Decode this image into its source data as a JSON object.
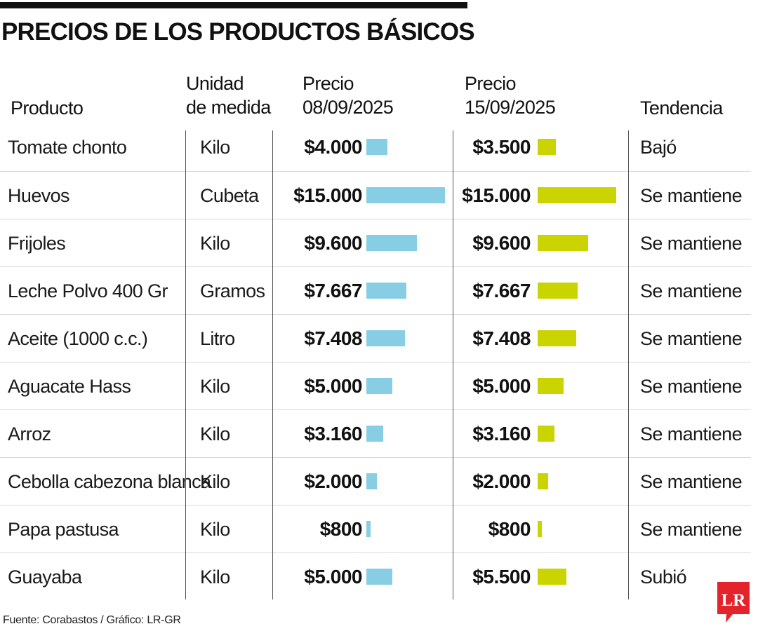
{
  "title": "PRECIOS DE LOS PRODUCTOS BÁSICOS",
  "columns": {
    "product": "Producto",
    "unit_line1": "Unidad",
    "unit_line2": "de medida",
    "price1_line1": "Precio",
    "price1_line2": "08/09/2025",
    "price2_line1": "Precio",
    "price2_line2": "15/09/2025",
    "trend": "Tendencia"
  },
  "colors": {
    "bar_week1": "#87cee5",
    "bar_week2": "#c9d400",
    "logo": "#e3242b"
  },
  "chart_data": {
    "type": "bar",
    "series": [
      {
        "name": "08/09/2025",
        "values": [
          4000,
          15000,
          9600,
          7667,
          7408,
          5000,
          3160,
          2000,
          800,
          5000
        ]
      },
      {
        "name": "15/09/2025",
        "values": [
          3500,
          15000,
          9600,
          7667,
          7408,
          5000,
          3160,
          2000,
          800,
          5500
        ]
      }
    ],
    "rows": [
      {
        "product": "Tomate chonto",
        "unit": "Kilo",
        "price1": 4000,
        "price1_label": "$4.000",
        "price2": 3500,
        "price2_label": "$3.500",
        "trend": "Bajó"
      },
      {
        "product": "Huevos",
        "unit": "Cubeta",
        "price1": 15000,
        "price1_label": "$15.000",
        "price2": 15000,
        "price2_label": "$15.000",
        "trend": "Se mantiene"
      },
      {
        "product": "Frijoles",
        "unit": "Kilo",
        "price1": 9600,
        "price1_label": "$9.600",
        "price2": 9600,
        "price2_label": "$9.600",
        "trend": "Se mantiene"
      },
      {
        "product": "Leche Polvo 400 Gr",
        "unit": "Gramos",
        "price1": 7667,
        "price1_label": "$7.667",
        "price2": 7667,
        "price2_label": "$7.667",
        "trend": "Se mantiene"
      },
      {
        "product": "Aceite (1000 c.c.)",
        "unit": "Litro",
        "price1": 7408,
        "price1_label": "$7.408",
        "price2": 7408,
        "price2_label": "$7.408",
        "trend": "Se mantiene"
      },
      {
        "product": "Aguacate Hass",
        "unit": "Kilo",
        "price1": 5000,
        "price1_label": "$5.000",
        "price2": 5000,
        "price2_label": "$5.000",
        "trend": "Se mantiene"
      },
      {
        "product": "Arroz",
        "unit": "Kilo",
        "price1": 3160,
        "price1_label": "$3.160",
        "price2": 3160,
        "price2_label": "$3.160",
        "trend": "Se mantiene"
      },
      {
        "product": "Cebolla cabezona blanca",
        "unit": "Kilo",
        "price1": 2000,
        "price1_label": "$2.000",
        "price2": 2000,
        "price2_label": "$2.000",
        "trend": "Se mantiene"
      },
      {
        "product": "Papa pastusa",
        "unit": "Kilo",
        "price1": 800,
        "price1_label": "$800",
        "price2": 800,
        "price2_label": "$800",
        "trend": "Se mantiene"
      },
      {
        "product": "Guayaba",
        "unit": "Kilo",
        "price1": 5000,
        "price1_label": "$5.000",
        "price2": 5500,
        "price2_label": "$5.500",
        "trend": "Subió"
      }
    ],
    "max_value": 15000
  },
  "source": "Fuente: Corabastos / Gráfico: LR-GR",
  "logo": {
    "text": "LR",
    "icon": "lr-logo-icon"
  }
}
